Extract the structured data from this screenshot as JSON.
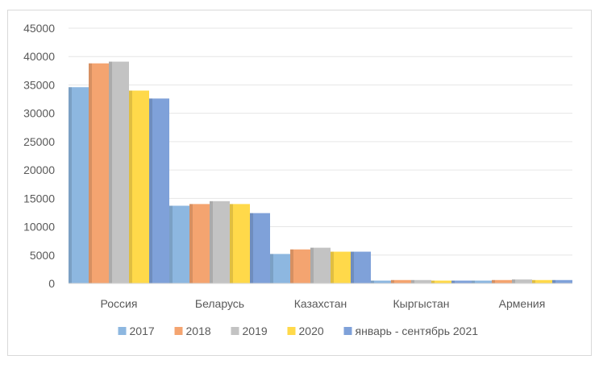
{
  "chart_data": {
    "type": "bar",
    "title": "",
    "xlabel": "",
    "ylabel": "",
    "ylim": [
      0,
      45000
    ],
    "yticks": [
      0,
      5000,
      10000,
      15000,
      20000,
      25000,
      30000,
      35000,
      40000,
      45000
    ],
    "grid": true,
    "legend_position": "bottom",
    "categories": [
      "Россия",
      "Беларусь",
      "Казахстан",
      "Кыргыстан",
      "Армения"
    ],
    "series": [
      {
        "name": "2017",
        "color": "#8db7e0",
        "values": [
          34600,
          13700,
          5200,
          500,
          500
        ]
      },
      {
        "name": "2018",
        "color": "#f4a470",
        "values": [
          38800,
          14000,
          6000,
          600,
          600
        ]
      },
      {
        "name": "2019",
        "color": "#c3c3c3",
        "values": [
          39100,
          14500,
          6300,
          600,
          700
        ]
      },
      {
        "name": "2020",
        "color": "#ffd94a",
        "values": [
          34000,
          14000,
          5600,
          500,
          600
        ]
      },
      {
        "name": "январь - сентябрь 2021",
        "color": "#7fa1d9",
        "values": [
          32600,
          12400,
          5600,
          500,
          600
        ]
      }
    ]
  }
}
